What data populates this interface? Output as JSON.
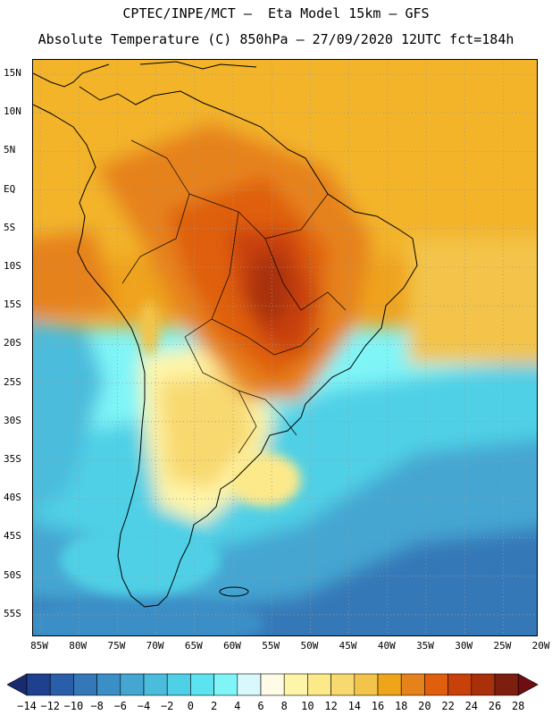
{
  "header": {
    "title_line1": "CPTEC/INPE/MCT –  Eta Model 15km – GFS",
    "title_line2": "Absolute Temperature (C) 850hPa – 27/09/2020 12UTC fct=184h"
  },
  "map": {
    "lat_labels": [
      "15N",
      "10N",
      "5N",
      "EQ",
      "5S",
      "10S",
      "15S",
      "20S",
      "25S",
      "30S",
      "35S",
      "40S",
      "45S",
      "50S",
      "55S"
    ],
    "lon_labels": [
      "85W",
      "80W",
      "75W",
      "70W",
      "65W",
      "60W",
      "55W",
      "50W",
      "45W",
      "40W",
      "35W",
      "30W",
      "25W",
      "20W"
    ],
    "grid": "dotted",
    "coastline_color": "#000000"
  },
  "colorbar": {
    "labels": [
      "-14",
      "-12",
      "-10",
      "-8",
      "-6",
      "-4",
      "-2",
      "0",
      "2",
      "4",
      "6",
      "8",
      "10",
      "12",
      "14",
      "16",
      "18",
      "20",
      "22",
      "24",
      "26",
      "28"
    ],
    "colors": [
      "#1f3f8f",
      "#2b5ea8",
      "#3478b8",
      "#3a8fc6",
      "#45a6d2",
      "#4cbcdc",
      "#4fd0e6",
      "#5de3ef",
      "#7ff5f8",
      "#d8f8fb",
      "#fffbe6",
      "#fff5a8",
      "#fce98a",
      "#f8d970",
      "#f3c44a",
      "#eea51c",
      "#e6821c",
      "#df5f0e",
      "#c8410a",
      "#a8300a",
      "#7d1f0e"
    ],
    "under_color": "#1a2a6e",
    "over_color": "#6e0d12"
  }
}
